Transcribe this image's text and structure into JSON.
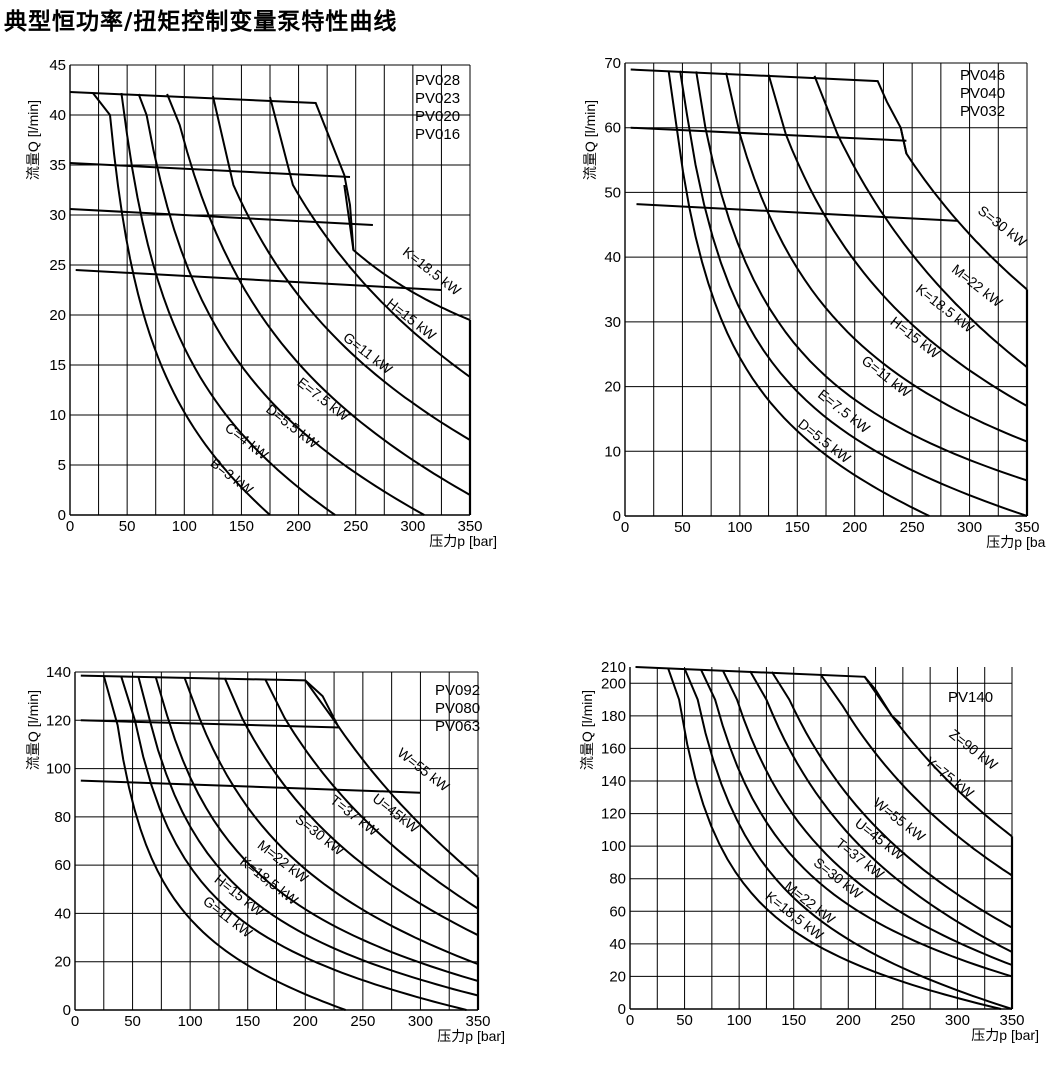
{
  "page": {
    "title": "典型恒功率/扭矩控制变量泵特性曲线"
  },
  "chart_data": [
    {
      "id": "c1",
      "type": "line",
      "models": [
        "PV028",
        "PV023",
        "PV020",
        "PV016"
      ],
      "xlabel": "压力p [bar]",
      "ylabel": "流量Q [l/min]",
      "xlim": [
        0,
        350
      ],
      "ylim": [
        0,
        45
      ],
      "xticks": [
        0,
        50,
        100,
        150,
        200,
        250,
        300,
        350
      ],
      "yticks": [
        0,
        5,
        10,
        15,
        20,
        25,
        30,
        35,
        40,
        45
      ],
      "xgrid": [
        25,
        50,
        75,
        100,
        125,
        150,
        175,
        200,
        225,
        250,
        275,
        300,
        325,
        350
      ],
      "ygrid": [
        5,
        10,
        15,
        20,
        25,
        30,
        35,
        40,
        45
      ],
      "max_flow_lines": [
        {
          "name": "PV028",
          "points": [
            [
              0,
              42.3
            ],
            [
              215,
              41.2
            ],
            [
              240,
              34
            ],
            [
              245,
              31
            ],
            [
              248,
              26.5
            ]
          ]
        },
        {
          "name": "PV023",
          "points": [
            [
              0,
              35.2
            ],
            [
              245,
              33.8
            ]
          ]
        },
        {
          "name": "PV020",
          "points": [
            [
              0,
              30.6
            ],
            [
              265,
              29.0
            ]
          ]
        },
        {
          "name": "PV016",
          "points": [
            [
              5,
              24.5
            ],
            [
              325,
              22.5
            ]
          ]
        }
      ],
      "power_curves": [
        {
          "label": "B=3 kW",
          "kw": 3,
          "start": [
            20,
            42.2
          ],
          "knee": [
            35,
            40
          ],
          "end": [
            175,
            0
          ]
        },
        {
          "label": "C=4 kW",
          "kw": 4,
          "start": [
            45,
            42.2
          ],
          "knee": [
            50,
            38
          ],
          "end": [
            232,
            0
          ]
        },
        {
          "label": "D=5.5 kW",
          "kw": 5.5,
          "start": [
            60,
            42.1
          ],
          "knee": [
            67,
            40
          ],
          "end": [
            310,
            0
          ]
        },
        {
          "label": "E=7.5 kW",
          "kw": 7.5,
          "start": [
            85,
            42.1
          ],
          "knee": [
            96,
            39
          ],
          "end": [
            350,
            2
          ]
        },
        {
          "label": "G=11 kW",
          "kw": 11,
          "start": [
            125,
            41.9
          ],
          "knee": [
            143,
            33
          ],
          "end": [
            350,
            7.5
          ]
        },
        {
          "label": "H=15 kW",
          "kw": 15,
          "start": [
            175,
            41.8
          ],
          "knee": [
            195,
            33
          ],
          "end": [
            350,
            13.8
          ]
        },
        {
          "label": "K=18.5 kW",
          "kw": 18.5,
          "start": [
            240,
            33
          ],
          "knee": [
            248,
            26.5
          ],
          "end": [
            350,
            19.5
          ]
        }
      ],
      "labels": [
        {
          "text": "B=3 kW",
          "at": [
            139,
            3.5
          ],
          "angle": 38
        },
        {
          "text": "C=4 kW",
          "at": [
            152,
            7.0
          ],
          "angle": 38
        },
        {
          "text": "D=5.5 kW",
          "at": [
            192,
            8.5
          ],
          "angle": 38
        },
        {
          "text": "E=7.5 kW",
          "at": [
            219,
            11.2
          ],
          "angle": 38
        },
        {
          "text": "G=11 kW",
          "at": [
            258,
            15.8
          ],
          "angle": 38
        },
        {
          "text": "H=15 kW",
          "at": [
            296,
            19.2
          ],
          "angle": 38
        },
        {
          "text": "K=18.5 kW",
          "at": [
            314,
            24.0
          ],
          "angle": 38
        }
      ]
    },
    {
      "id": "c2",
      "type": "line",
      "models": [
        "PV046",
        "PV040",
        "PV032"
      ],
      "xlabel": "压力p [bar]",
      "ylabel": "流量Q [l/min]",
      "xlim": [
        0,
        350
      ],
      "ylim": [
        0,
        70
      ],
      "xticks": [
        0,
        50,
        100,
        150,
        200,
        250,
        300,
        350
      ],
      "yticks": [
        0,
        10,
        20,
        30,
        40,
        50,
        60,
        70
      ],
      "xgrid": [
        25,
        50,
        75,
        100,
        125,
        150,
        175,
        200,
        225,
        250,
        275,
        300,
        325,
        350
      ],
      "ygrid": [
        10,
        20,
        30,
        40,
        50,
        60,
        70
      ],
      "max_flow_lines": [
        {
          "name": "PV046",
          "points": [
            [
              5,
              69
            ],
            [
              220,
              67.2
            ],
            [
              228,
              64
            ],
            [
              240,
              60
            ],
            [
              245,
              56
            ]
          ]
        },
        {
          "name": "PV040",
          "points": [
            [
              5,
              60
            ],
            [
              245,
              58
            ]
          ]
        },
        {
          "name": "PV032",
          "points": [
            [
              10,
              48.2
            ],
            [
              290,
              45.6
            ]
          ]
        }
      ],
      "power_curves": [
        {
          "label": "D=5.5 kW",
          "kw": 5.5,
          "start": [
            38,
            68.8
          ],
          "knee": [
            45,
            60
          ],
          "end": [
            265,
            0
          ]
        },
        {
          "label": "E=7.5 kW",
          "kw": 7.5,
          "start": [
            48,
            68.8
          ],
          "knee": [
            54,
            62
          ],
          "end": [
            350,
            0
          ]
        },
        {
          "label": "G=11 kW",
          "kw": 11,
          "start": [
            62,
            68.7
          ],
          "knee": [
            70,
            60
          ],
          "end": [
            350,
            5.5
          ]
        },
        {
          "label": "H=15 kW",
          "kw": 15,
          "start": [
            88,
            68.5
          ],
          "knee": [
            100,
            59
          ],
          "end": [
            350,
            11.5
          ]
        },
        {
          "label": "K=18.5 kW",
          "kw": 18.5,
          "start": [
            125,
            68.2
          ],
          "knee": [
            140,
            59
          ],
          "end": [
            350,
            17.0
          ]
        },
        {
          "label": "M=22 kW",
          "kw": 22,
          "start": [
            165,
            68.0
          ],
          "knee": [
            185,
            59
          ],
          "end": [
            350,
            23.0
          ]
        },
        {
          "label": "S=30 kW",
          "kw": 30,
          "start": [
            240,
            60
          ],
          "knee": [
            245,
            56
          ],
          "end": [
            350,
            35.0
          ]
        }
      ],
      "labels": [
        {
          "text": "D=5.5 kW",
          "at": [
            171,
            11.0
          ],
          "angle": 38
        },
        {
          "text": "E=7.5 kW",
          "at": [
            188,
            15.6
          ],
          "angle": 38
        },
        {
          "text": "G=11 kW",
          "at": [
            225,
            21.0
          ],
          "angle": 38
        },
        {
          "text": "H=15 kW",
          "at": [
            250,
            27.0
          ],
          "angle": 38
        },
        {
          "text": "K=18.5 kW",
          "at": [
            276,
            31.5
          ],
          "angle": 38
        },
        {
          "text": "M=22 kW",
          "at": [
            304,
            35.0
          ],
          "angle": 38
        },
        {
          "text": "S=30 kW",
          "at": [
            326,
            44.2
          ],
          "angle": 38
        }
      ]
    },
    {
      "id": "c3",
      "type": "line",
      "models": [
        "PV092",
        "PV080",
        "PV063"
      ],
      "xlabel": "压力p [bar]",
      "ylabel": "流量Q [l/min]",
      "xlim": [
        0,
        350
      ],
      "ylim": [
        0,
        140
      ],
      "xticks": [
        0,
        50,
        100,
        150,
        200,
        250,
        300,
        350
      ],
      "yticks": [
        0,
        20,
        40,
        60,
        80,
        100,
        120,
        140
      ],
      "xgrid": [
        25,
        50,
        75,
        100,
        125,
        150,
        175,
        200,
        225,
        250,
        275,
        300,
        325,
        350
      ],
      "ygrid": [
        20,
        40,
        60,
        80,
        100,
        120,
        140
      ],
      "max_flow_lines": [
        {
          "name": "PV092",
          "points": [
            [
              5,
              138.5
            ],
            [
              200,
              136.5
            ],
            [
              215,
              130
            ],
            [
              228,
              118
            ]
          ]
        },
        {
          "name": "PV080",
          "points": [
            [
              5,
              120
            ],
            [
              230,
              117
            ]
          ]
        },
        {
          "name": "PV063",
          "points": [
            [
              5,
              95
            ],
            [
              300,
              90
            ]
          ]
        }
      ],
      "power_curves": [
        {
          "label": "G=11 kW",
          "kw": 11,
          "start": [
            25,
            138.4
          ],
          "knee": [
            37,
            118
          ],
          "end": [
            235,
            0
          ]
        },
        {
          "label": "H=15 kW",
          "kw": 15,
          "start": [
            40,
            138.3
          ],
          "knee": [
            52,
            120
          ],
          "end": [
            340,
            0
          ]
        },
        {
          "label": "K=18.5 kW",
          "kw": 18.5,
          "start": [
            55,
            138.2
          ],
          "knee": [
            65,
            120
          ],
          "end": [
            350,
            6
          ]
        },
        {
          "label": "M=22 kW",
          "kw": 22,
          "start": [
            70,
            138.1
          ],
          "knee": [
            80,
            122
          ],
          "end": [
            350,
            12
          ]
        },
        {
          "label": "S=30 kW",
          "kw": 30,
          "start": [
            95,
            137.8
          ],
          "knee": [
            108,
            121
          ],
          "end": [
            350,
            19
          ]
        },
        {
          "label": "T=37 kW",
          "kw": 37,
          "start": [
            130,
            137.5
          ],
          "knee": [
            145,
            121
          ],
          "end": [
            350,
            31
          ]
        },
        {
          "label": "U=45kW",
          "kw": 45,
          "start": [
            165,
            137.2
          ],
          "knee": [
            182,
            121
          ],
          "end": [
            350,
            42
          ]
        },
        {
          "label": "W=55 kW",
          "kw": 55,
          "start": [
            200,
            136.5
          ],
          "knee": [
            228,
            118
          ],
          "end": [
            350,
            55
          ]
        }
      ],
      "labels": [
        {
          "text": "G=11 kW",
          "at": [
            130,
            37
          ],
          "angle": 38
        },
        {
          "text": "H=15 kW",
          "at": [
            140,
            46
          ],
          "angle": 38
        },
        {
          "text": "K=18,5 kW",
          "at": [
            166,
            52
          ],
          "angle": 38
        },
        {
          "text": "M=22 kW",
          "at": [
            178,
            60
          ],
          "angle": 38
        },
        {
          "text": "S=30 kW",
          "at": [
            210,
            71
          ],
          "angle": 38
        },
        {
          "text": "T=37 kW",
          "at": [
            240,
            79
          ],
          "angle": 38
        },
        {
          "text": "U=45kW",
          "at": [
            276,
            80
          ],
          "angle": 38
        },
        {
          "text": "W=55 kW",
          "at": [
            300,
            98
          ],
          "angle": 38
        }
      ]
    },
    {
      "id": "c4",
      "type": "line",
      "models": [
        "PV140"
      ],
      "xlabel": "压力p [bar]",
      "ylabel": "流量Q [l/min]",
      "xlim": [
        0,
        350
      ],
      "ylim": [
        0,
        210
      ],
      "xticks": [
        0,
        50,
        100,
        150,
        200,
        250,
        300,
        350
      ],
      "yticks": [
        0,
        20,
        40,
        60,
        80,
        100,
        120,
        140,
        160,
        180,
        200,
        210
      ],
      "xgrid": [
        25,
        50,
        75,
        100,
        125,
        150,
        175,
        200,
        225,
        250,
        275,
        300,
        325,
        350
      ],
      "ygrid": [
        20,
        40,
        60,
        80,
        100,
        120,
        140,
        160,
        180,
        200
      ],
      "max_flow_lines": [
        {
          "name": "PV140",
          "points": [
            [
              5,
              210
            ],
            [
              215,
              204
            ],
            [
              225,
              196
            ],
            [
              240,
              180
            ],
            [
              248,
              175
            ]
          ]
        }
      ],
      "power_curves": [
        {
          "label": "K=18,5 kW",
          "kw": 18.5,
          "start": [
            35,
            209
          ],
          "knee": [
            45,
            190
          ],
          "end": [
            340,
            0
          ]
        },
        {
          "label": "M=22 kW",
          "kw": 22,
          "start": [
            50,
            209
          ],
          "knee": [
            62,
            190
          ],
          "end": [
            350,
            0
          ]
        },
        {
          "label": "S=30 kW",
          "kw": 30,
          "start": [
            65,
            208.5
          ],
          "knee": [
            78,
            190
          ],
          "end": [
            350,
            20
          ]
        },
        {
          "label": "T=37 kW",
          "kw": 37,
          "start": [
            85,
            208
          ],
          "knee": [
            98,
            190
          ],
          "end": [
            350,
            27
          ]
        },
        {
          "label": "U=45 kW",
          "kw": 45,
          "start": [
            110,
            207.5
          ],
          "knee": [
            125,
            190
          ],
          "end": [
            350,
            35
          ]
        },
        {
          "label": "W=55 kW",
          "kw": 55,
          "start": [
            130,
            207
          ],
          "knee": [
            146,
            190
          ],
          "end": [
            350,
            50
          ]
        },
        {
          "label": "Y=75 kW",
          "kw": 75,
          "start": [
            175,
            205
          ],
          "knee": [
            195,
            186
          ],
          "end": [
            350,
            82
          ]
        },
        {
          "label": "Z=90 kW",
          "kw": 90,
          "start": [
            215,
            204
          ],
          "knee": [
            240,
            180
          ],
          "end": [
            350,
            106
          ]
        }
      ],
      "labels": [
        {
          "text": "K=18,5 kW",
          "at": [
            148,
            55
          ],
          "angle": 38
        },
        {
          "text": "M=22 kW",
          "at": [
            162,
            63
          ],
          "angle": 38
        },
        {
          "text": "S=30 kW",
          "at": [
            188,
            78
          ],
          "angle": 38
        },
        {
          "text": "T=37 kW",
          "at": [
            208,
            90
          ],
          "angle": 38
        },
        {
          "text": "U=45 kW",
          "at": [
            226,
            102
          ],
          "angle": 38
        },
        {
          "text": "W=55 kW",
          "at": [
            244,
            114
          ],
          "angle": 38
        },
        {
          "text": "Y=75 kW",
          "at": [
            290,
            140
          ],
          "angle": 38
        },
        {
          "text": "Z=90 kW",
          "at": [
            312,
            157
          ],
          "angle": 38
        }
      ]
    }
  ]
}
